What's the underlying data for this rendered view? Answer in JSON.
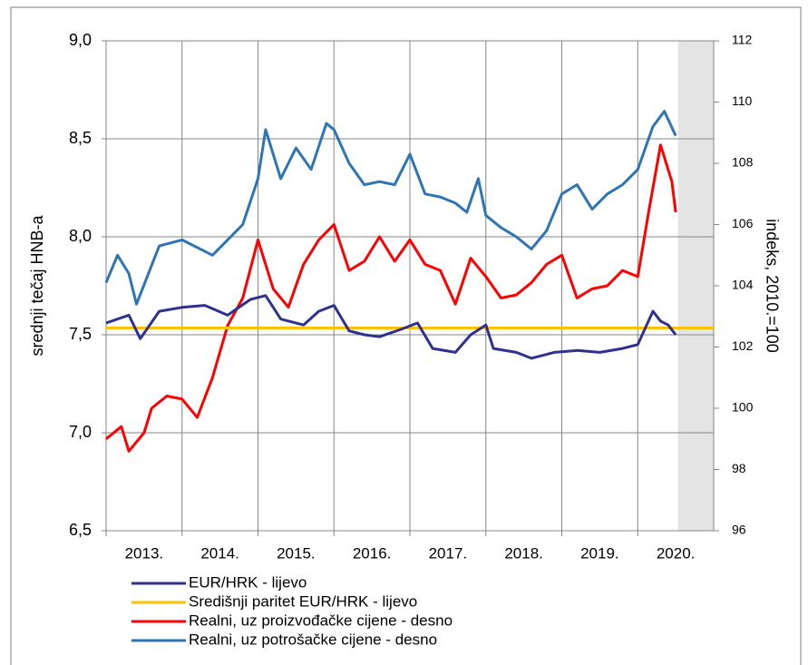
{
  "chart_data": {
    "type": "line",
    "ylabel": "srednji tečaj HNB-a",
    "y2label": "indeks, 2010.=100",
    "xlim": [
      2013,
      2021
    ],
    "xticks": [
      {
        "value": 2013.5,
        "label": "2013."
      },
      {
        "value": 2014.5,
        "label": "2014."
      },
      {
        "value": 2015.5,
        "label": "2015."
      },
      {
        "value": 2016.5,
        "label": "2016."
      },
      {
        "value": 2017.5,
        "label": "2017."
      },
      {
        "value": 2018.5,
        "label": "2018."
      },
      {
        "value": 2019.5,
        "label": "2019."
      },
      {
        "value": 2020.5,
        "label": "2020."
      }
    ],
    "ylim": [
      6.5,
      9.0
    ],
    "yticks": [
      {
        "value": 6.5,
        "label": "6,5"
      },
      {
        "value": 7.0,
        "label": "7,0"
      },
      {
        "value": 7.5,
        "label": "7,5"
      },
      {
        "value": 8.0,
        "label": "8,0"
      },
      {
        "value": 8.5,
        "label": "8,5"
      },
      {
        "value": 9.0,
        "label": "9,0"
      }
    ],
    "y2lim": [
      96,
      112
    ],
    "y2ticks": [
      96,
      98,
      100,
      102,
      104,
      106,
      108,
      110,
      112
    ],
    "grid": true,
    "shaded_xrange": [
      2020.53,
      2021
    ],
    "series": [
      {
        "name": "EUR/HRK - lijevo",
        "color": "#2e3192",
        "axis": "y",
        "x": [
          2013.0,
          2013.3,
          2013.45,
          2013.7,
          2014.0,
          2014.3,
          2014.6,
          2014.9,
          2015.1,
          2015.3,
          2015.6,
          2015.8,
          2016.0,
          2016.2,
          2016.4,
          2016.6,
          2016.9,
          2017.1,
          2017.3,
          2017.6,
          2017.8,
          2018.0,
          2018.1,
          2018.4,
          2018.6,
          2018.9,
          2019.2,
          2019.5,
          2019.8,
          2020.0,
          2020.2,
          2020.3,
          2020.4,
          2020.5
        ],
        "values": [
          7.56,
          7.6,
          7.48,
          7.62,
          7.64,
          7.65,
          7.6,
          7.68,
          7.7,
          7.58,
          7.55,
          7.62,
          7.65,
          7.52,
          7.5,
          7.49,
          7.53,
          7.56,
          7.43,
          7.41,
          7.5,
          7.55,
          7.43,
          7.41,
          7.38,
          7.41,
          7.42,
          7.41,
          7.43,
          7.45,
          7.62,
          7.57,
          7.55,
          7.5
        ]
      },
      {
        "name": "Središnji paritet EUR/HRK - lijevo",
        "color": "#ffc000",
        "axis": "y",
        "x": [
          2013,
          2021
        ],
        "values": [
          7.5345,
          7.5345
        ]
      },
      {
        "name": "Realni, uz proizvođačke cijene - desno",
        "color": "#ff0000",
        "axis": "y2",
        "x": [
          2013.0,
          2013.2,
          2013.3,
          2013.5,
          2013.6,
          2013.8,
          2014.0,
          2014.2,
          2014.4,
          2014.6,
          2014.8,
          2015.0,
          2015.2,
          2015.4,
          2015.6,
          2015.8,
          2016.0,
          2016.2,
          2016.4,
          2016.6,
          2016.8,
          2017.0,
          2017.2,
          2017.4,
          2017.6,
          2017.8,
          2018.0,
          2018.2,
          2018.4,
          2018.6,
          2018.8,
          2019.0,
          2019.2,
          2019.4,
          2019.6,
          2019.8,
          2020.0,
          2020.15,
          2020.3,
          2020.45,
          2020.5
        ],
        "values": [
          99,
          99.4,
          98.6,
          99.2,
          100,
          100.4,
          100.3,
          99.7,
          101,
          102.7,
          103.6,
          105.5,
          103.9,
          103.3,
          104.7,
          105.5,
          106,
          104.5,
          104.8,
          105.6,
          104.8,
          105.5,
          104.7,
          104.5,
          103.4,
          104.9,
          104.3,
          103.6,
          103.7,
          104.1,
          104.7,
          105,
          103.6,
          103.9,
          104,
          104.5,
          104.3,
          106.5,
          108.6,
          107.4,
          106.4
        ]
      },
      {
        "name": "Realni, uz potrošačke cijene - desno",
        "color": "#2e75b6",
        "axis": "y2",
        "x": [
          2013.0,
          2013.15,
          2013.3,
          2013.4,
          2013.7,
          2014.0,
          2014.4,
          2014.6,
          2014.8,
          2015.0,
          2015.1,
          2015.3,
          2015.5,
          2015.7,
          2015.9,
          2016.0,
          2016.2,
          2016.4,
          2016.6,
          2016.8,
          2017.0,
          2017.2,
          2017.4,
          2017.6,
          2017.75,
          2017.9,
          2018.0,
          2018.2,
          2018.4,
          2018.6,
          2018.8,
          2019.0,
          2019.2,
          2019.4,
          2019.6,
          2019.8,
          2020.0,
          2020.2,
          2020.35,
          2020.5
        ],
        "values": [
          104.1,
          105,
          104.4,
          103.4,
          105.3,
          105.5,
          105,
          105.5,
          106,
          107.5,
          109.1,
          107.5,
          108.5,
          107.8,
          109.3,
          109.1,
          108,
          107.3,
          107.4,
          107.3,
          108.3,
          107,
          106.9,
          106.7,
          106.4,
          107.5,
          106.3,
          105.9,
          105.6,
          105.2,
          105.8,
          107,
          107.3,
          106.5,
          107,
          107.3,
          107.8,
          109.2,
          109.7,
          108.9
        ]
      }
    ]
  }
}
